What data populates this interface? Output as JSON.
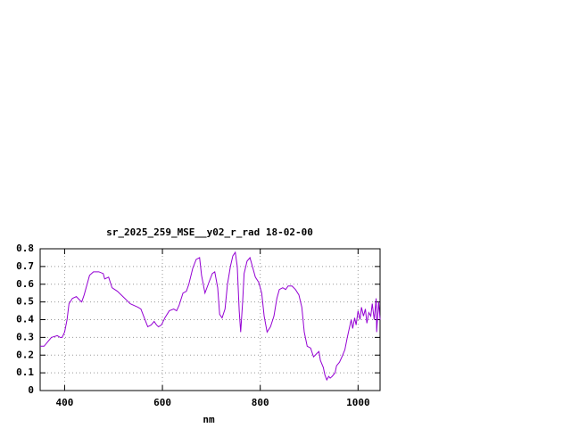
{
  "chart_data": {
    "type": "line",
    "title": "sr_2025_259_MSE__y02_r_rad 18-02-00",
    "x_label": "nm",
    "xlim": [
      350,
      1045
    ],
    "xticks": [
      400,
      600,
      800,
      1000
    ],
    "ylim": [
      0,
      0.8
    ],
    "yticks": [
      0,
      0.1,
      0.2,
      0.3,
      0.4,
      0.5,
      0.6,
      0.7,
      0.8
    ],
    "grid": true,
    "series": [
      {
        "color": "#9400d3",
        "x": [
          350,
          358,
          367,
          373,
          385,
          391,
          395,
          400,
          405,
          409,
          416,
          424,
          431,
          435,
          440,
          446,
          451,
          459,
          470,
          479,
          482,
          490,
          497,
          508,
          523,
          534,
          550,
          556,
          563,
          570,
          577,
          583,
          588,
          592,
          598,
          605,
          614,
          623,
          629,
          634,
          642,
          649,
          654,
          662,
          669,
          676,
          680,
          687,
          695,
          702,
          707,
          713,
          717,
          722,
          728,
          733,
          739,
          744,
          749,
          753,
          757,
          760,
          764,
          767,
          773,
          779,
          784,
          790,
          797,
          803,
          808,
          814,
          821,
          828,
          834,
          839,
          846,
          852,
          857,
          865,
          872,
          879,
          885,
          890,
          896,
          903,
          909,
          916,
          920,
          923,
          929,
          932,
          936,
          940,
          943,
          947,
          953,
          956,
          962,
          967,
          973,
          978,
          982,
          986,
          989,
          993,
          996,
          1000,
          1004,
          1007,
          1011,
          1015,
          1018,
          1022,
          1026,
          1029,
          1033,
          1037,
          1038,
          1042,
          1045
        ],
        "values": [
          0.25,
          0.25,
          0.28,
          0.3,
          0.31,
          0.3,
          0.3,
          0.33,
          0.4,
          0.49,
          0.52,
          0.53,
          0.51,
          0.5,
          0.54,
          0.6,
          0.65,
          0.67,
          0.67,
          0.66,
          0.63,
          0.64,
          0.58,
          0.56,
          0.52,
          0.49,
          0.47,
          0.46,
          0.41,
          0.36,
          0.37,
          0.39,
          0.37,
          0.36,
          0.37,
          0.41,
          0.45,
          0.46,
          0.45,
          0.48,
          0.55,
          0.56,
          0.6,
          0.69,
          0.74,
          0.75,
          0.65,
          0.55,
          0.61,
          0.66,
          0.67,
          0.58,
          0.43,
          0.41,
          0.46,
          0.6,
          0.7,
          0.76,
          0.78,
          0.7,
          0.45,
          0.33,
          0.5,
          0.66,
          0.73,
          0.75,
          0.7,
          0.64,
          0.61,
          0.55,
          0.42,
          0.33,
          0.36,
          0.42,
          0.52,
          0.57,
          0.58,
          0.57,
          0.59,
          0.59,
          0.57,
          0.54,
          0.47,
          0.33,
          0.25,
          0.24,
          0.19,
          0.21,
          0.22,
          0.17,
          0.13,
          0.09,
          0.06,
          0.08,
          0.07,
          0.08,
          0.1,
          0.14,
          0.16,
          0.19,
          0.23,
          0.3,
          0.35,
          0.4,
          0.35,
          0.41,
          0.37,
          0.45,
          0.4,
          0.47,
          0.42,
          0.46,
          0.38,
          0.44,
          0.42,
          0.49,
          0.4,
          0.52,
          0.33,
          0.5,
          0.4
        ]
      }
    ]
  }
}
